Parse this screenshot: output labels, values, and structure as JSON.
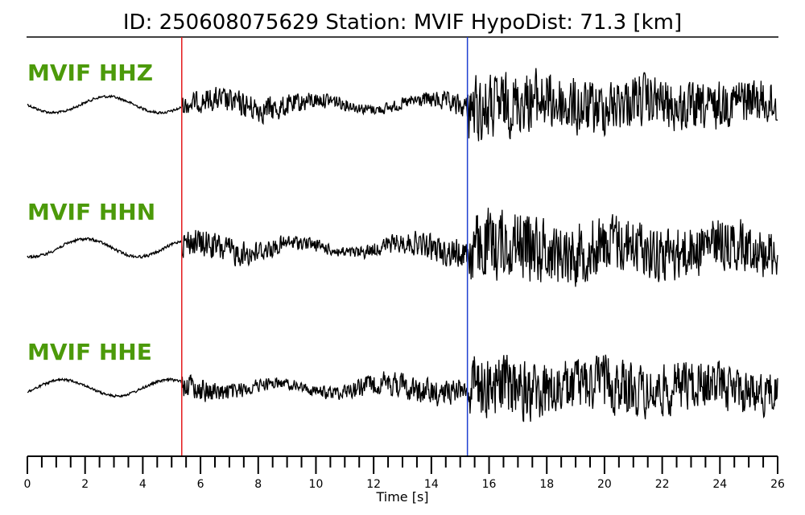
{
  "title": "ID: 250608075629   Station: MVIF   HypoDist:    71.3 [km]",
  "chart_data": {
    "type": "line",
    "xlabel": "Time [s]",
    "xlim": [
      0,
      26
    ],
    "x_ticks": [
      0,
      2,
      4,
      6,
      8,
      10,
      12,
      14,
      16,
      18,
      20,
      22,
      24,
      26
    ],
    "minor_tick_step": 0.5,
    "picks": [
      {
        "phase": "P",
        "time": 5.35,
        "color": "#e41a1c"
      },
      {
        "phase": "S",
        "time": 15.25,
        "color": "#1f3fd1"
      }
    ],
    "channel_label_color": "#4c9a0a",
    "series": [
      {
        "name": "MVIF HHZ"
      },
      {
        "name": "MVIF HHN"
      },
      {
        "name": "MVIF HHE"
      }
    ]
  }
}
